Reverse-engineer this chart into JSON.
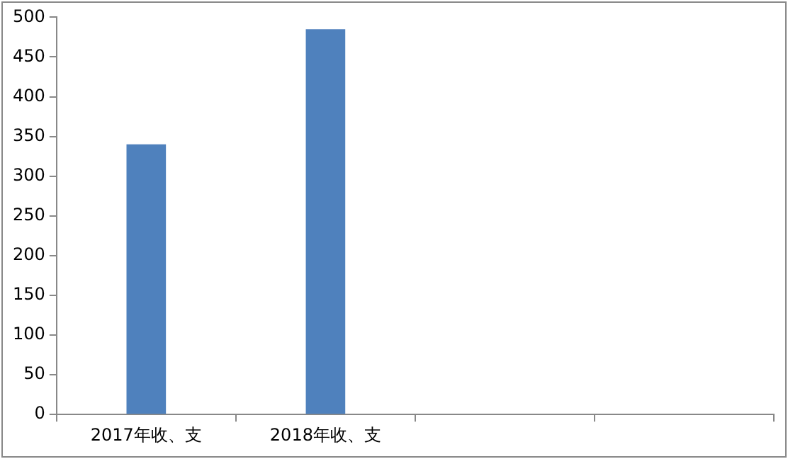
{
  "chart_data": {
    "type": "bar",
    "categories": [
      "2017年收、支",
      "2018年收、支",
      null,
      null
    ],
    "values": [
      340,
      485,
      null,
      null
    ],
    "color": "#4f81bd",
    "ylim": [
      0,
      500
    ],
    "yticks": [
      0,
      50,
      100,
      150,
      200,
      250,
      300,
      350,
      400,
      450,
      500
    ],
    "grid": false,
    "legend": false
  }
}
